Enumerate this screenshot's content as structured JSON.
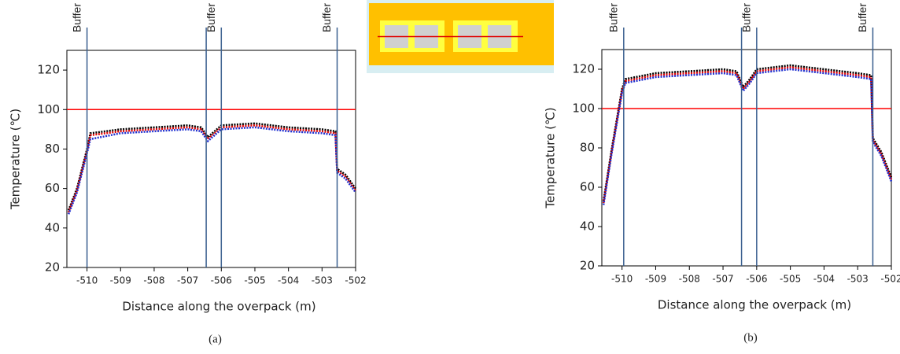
{
  "chart_data": [
    {
      "type": "line",
      "caption": "(a)",
      "x_label": "Distance along the overpack (m)",
      "y_label": "Temperature (℃)",
      "x": [
        -510.55,
        -510.3,
        -510.0,
        -509.9,
        -509.0,
        -508.0,
        -507.0,
        -506.6,
        -506.4,
        -506.2,
        -506.0,
        -505.0,
        -504.0,
        -503.0,
        -502.6,
        -502.55,
        -502.3,
        -502.0
      ],
      "series": [
        {
          "color": "#000000",
          "values": [
            49,
            60,
            80,
            88,
            90,
            91,
            92,
            91,
            86,
            89,
            92,
            93,
            91,
            90,
            89,
            70,
            67,
            60
          ]
        },
        {
          "color": "#e00000",
          "values": [
            48,
            59,
            79,
            87,
            89,
            90,
            91,
            90,
            85,
            88,
            91,
            92,
            90,
            89,
            88,
            69,
            66,
            59
          ]
        },
        {
          "color": "#2030d0",
          "values": [
            47,
            58,
            78,
            85,
            88,
            89,
            90,
            89,
            84,
            87,
            90,
            91,
            89,
            88,
            87,
            68,
            65,
            58
          ]
        }
      ],
      "threshold": 100,
      "threshold_color": "#ff0000",
      "buffer_lines": [
        -510.0,
        -506.45,
        -506.0,
        -502.55
      ],
      "annotations": [
        {
          "text": "Buffer",
          "x": -510.0
        },
        {
          "text": "Buffer",
          "x": -506.0
        },
        {
          "text": "Buffer",
          "x": -502.55
        }
      ],
      "xlim": [
        -510.6,
        -502
      ],
      "xticks": [
        -510,
        -509,
        -508,
        -507,
        -506,
        -505,
        -504,
        -503,
        -502
      ],
      "ylim": [
        20,
        130
      ],
      "yticks": [
        20,
        40,
        60,
        80,
        100,
        120
      ]
    },
    {
      "type": "line",
      "caption": "(b)",
      "x_label": "Distance along the overpack (m)",
      "y_label": "Temperature (℃)",
      "x": [
        -510.55,
        -510.3,
        -510.0,
        -509.9,
        -509.0,
        -508.0,
        -507.0,
        -506.6,
        -506.4,
        -506.2,
        -506.0,
        -505.0,
        -504.0,
        -503.0,
        -502.6,
        -502.55,
        -502.3,
        -502.0
      ],
      "series": [
        {
          "color": "#000000",
          "values": [
            53,
            80,
            110,
            115,
            118,
            119,
            120,
            119,
            111,
            115,
            120,
            122,
            120,
            118,
            117,
            85,
            78,
            65
          ]
        },
        {
          "color": "#e00000",
          "values": [
            52,
            79,
            109,
            114,
            117,
            118,
            119,
            118,
            110,
            114,
            119,
            121,
            119,
            117,
            116,
            84,
            77,
            64
          ]
        },
        {
          "color": "#2030d0",
          "values": [
            51,
            78,
            108,
            113,
            116,
            117,
            118,
            117,
            109,
            113,
            118,
            120,
            118,
            116,
            115,
            83,
            76,
            63
          ]
        }
      ],
      "threshold": 100,
      "threshold_color": "#ff0000",
      "buffer_lines": [
        -509.95,
        -506.45,
        -506.0,
        -502.55
      ],
      "annotations": [
        {
          "text": "Buffer",
          "x": -509.95
        },
        {
          "text": "Buffer",
          "x": -506.0
        },
        {
          "text": "Buffer",
          "x": -502.55
        }
      ],
      "xlim": [
        -510.6,
        -502
      ],
      "xticks": [
        -510,
        -509,
        -508,
        -507,
        -506,
        -505,
        -504,
        -503,
        -502
      ],
      "ylim": [
        20,
        130
      ],
      "yticks": [
        20,
        40,
        60,
        80,
        100,
        120
      ]
    }
  ]
}
